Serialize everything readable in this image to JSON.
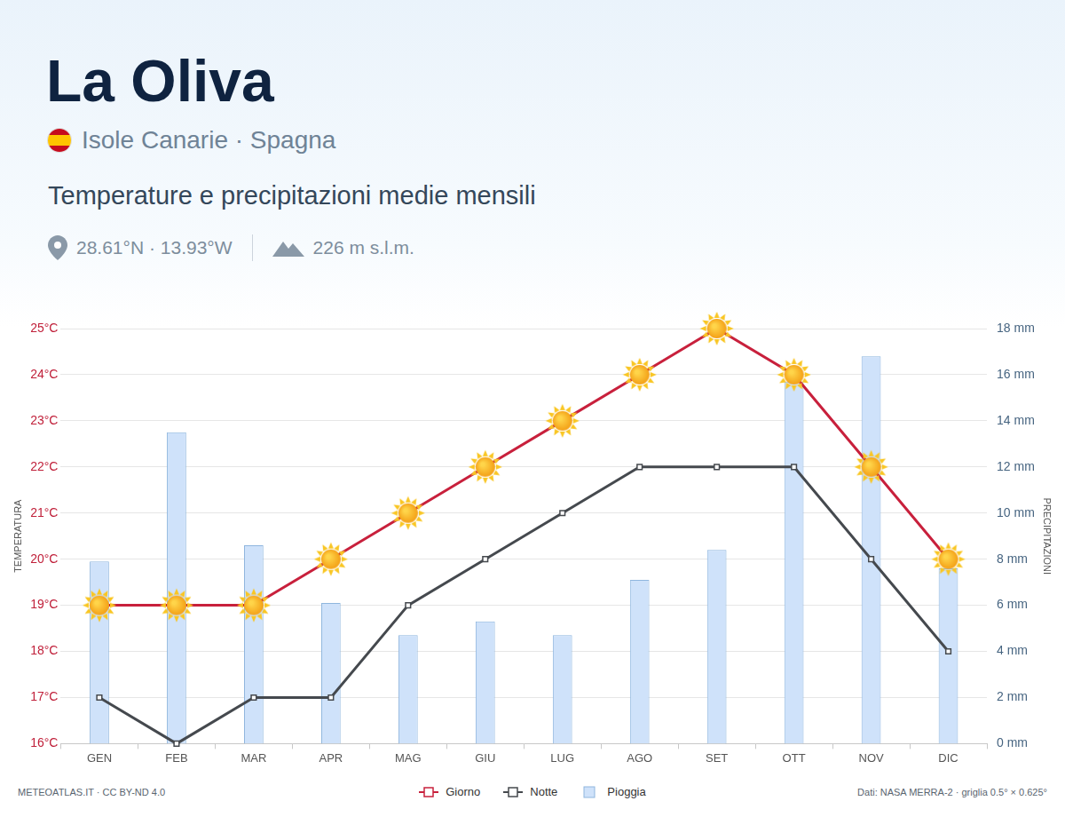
{
  "header": {
    "title": "La Oliva",
    "subtitle": "Isole Canarie · Spagna",
    "heading": "Temperature e precipitazioni medie mensili",
    "coordinates": "28.61°N · 13.93°W",
    "elevation": "226 m s.l.m."
  },
  "footer": {
    "source": "METEOATLAS.IT · CC BY-ND 4.0",
    "data": "Dati: NASA MERRA-2 · griglia 0.5° × 0.625°"
  },
  "chart_data": {
    "type": "bar",
    "categories": [
      "GEN",
      "FEB",
      "MAR",
      "APR",
      "MAG",
      "GIU",
      "LUG",
      "AGO",
      "SET",
      "OTT",
      "NOV",
      "DIC"
    ],
    "y_label": "TEMPERATURA",
    "y2_label": "PRECIPITAZIONI",
    "ylim": [
      16,
      25
    ],
    "yticks": [
      {
        "value": 16,
        "label": "16°C"
      },
      {
        "value": 17,
        "label": "17°C"
      },
      {
        "value": 18,
        "label": "18°C"
      },
      {
        "value": 19,
        "label": "19°C"
      },
      {
        "value": 20,
        "label": "20°C"
      },
      {
        "value": 21,
        "label": "21°C"
      },
      {
        "value": 22,
        "label": "22°C"
      },
      {
        "value": 23,
        "label": "23°C"
      },
      {
        "value": 24,
        "label": "24°C"
      },
      {
        "value": 25,
        "label": "25°C"
      }
    ],
    "y2lim": [
      0,
      18
    ],
    "y2ticks": [
      {
        "value": 0,
        "label": "0 mm"
      },
      {
        "value": 2,
        "label": "2 mm"
      },
      {
        "value": 4,
        "label": "4 mm"
      },
      {
        "value": 6,
        "label": "6 mm"
      },
      {
        "value": 8,
        "label": "8 mm"
      },
      {
        "value": 10,
        "label": "10 mm"
      },
      {
        "value": 12,
        "label": "12 mm"
      },
      {
        "value": 14,
        "label": "14 mm"
      },
      {
        "value": 16,
        "label": "16 mm"
      },
      {
        "value": 18,
        "label": "18 mm"
      }
    ],
    "grid": true,
    "legend": "bottom",
    "series": [
      {
        "name": "Giorno",
        "type": "line",
        "color": "#c8203c",
        "marker": "sun",
        "values": [
          19,
          19,
          19,
          20,
          21,
          22,
          23,
          24,
          25,
          24,
          22,
          20
        ]
      },
      {
        "name": "Notte",
        "type": "line",
        "color": "#45494e",
        "marker": "square",
        "values": [
          17,
          16,
          17,
          17,
          19,
          20,
          21,
          22,
          22,
          22,
          20,
          18
        ]
      },
      {
        "name": "Pioggia",
        "type": "bar",
        "color": "#cfe2fa",
        "axis": "y2",
        "values": [
          7.9,
          13.5,
          8.6,
          6.1,
          4.7,
          5.3,
          4.7,
          7.1,
          8.4,
          15.7,
          16.8,
          7.6
        ]
      }
    ]
  }
}
